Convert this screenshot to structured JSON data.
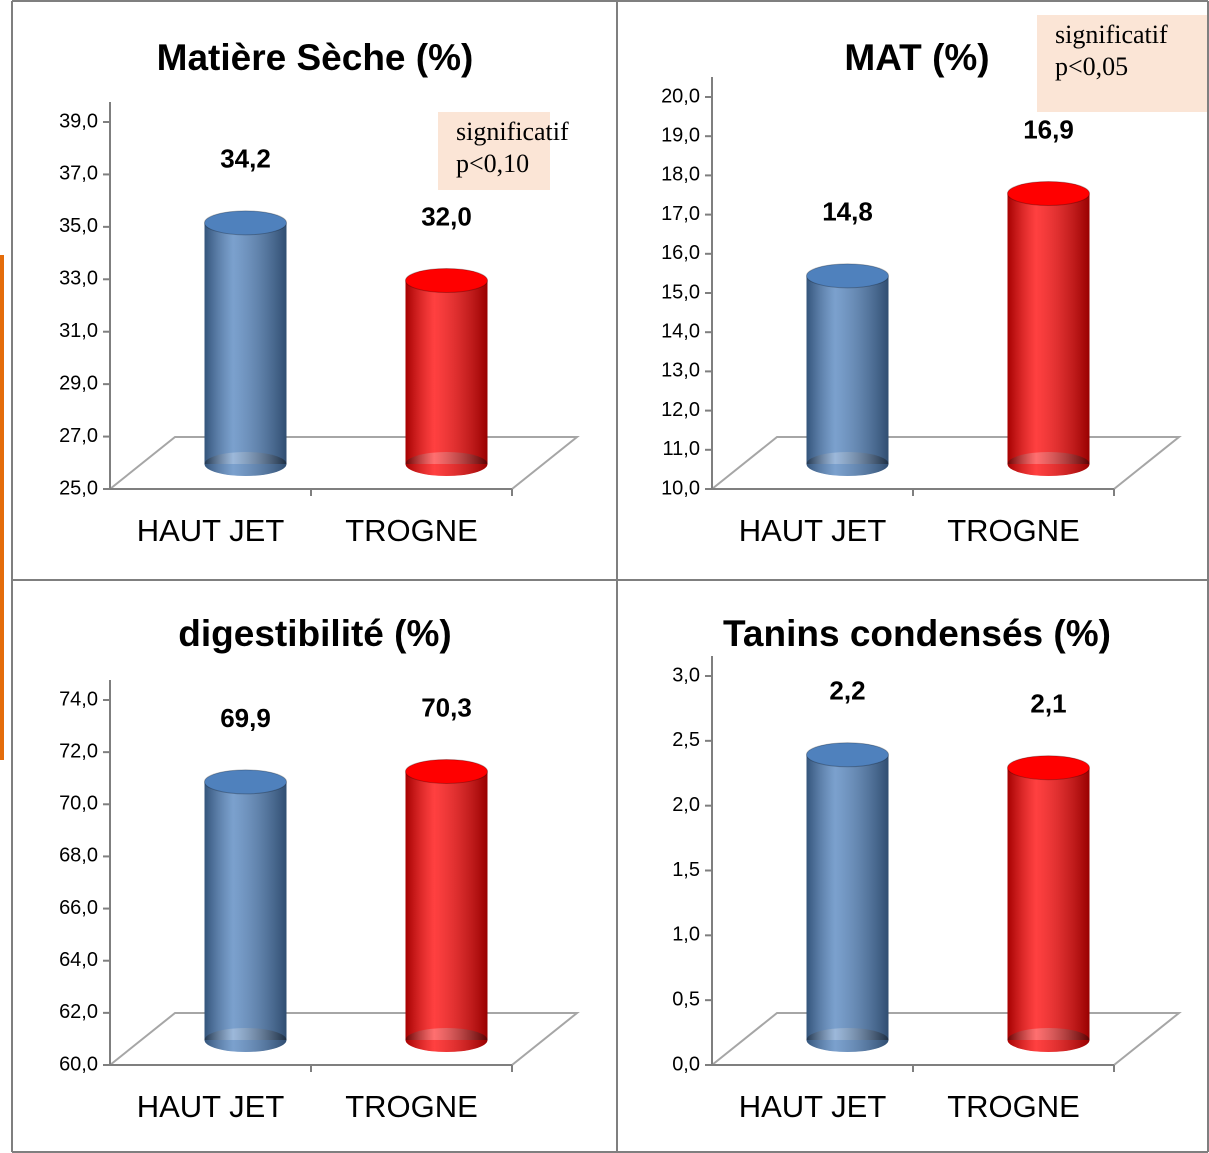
{
  "chart_data": [
    {
      "type": "bar",
      "title": "Matière Sèche (%)",
      "categories": [
        "HAUT JET",
        "TROGNE"
      ],
      "values": [
        34.2,
        32.0
      ],
      "value_labels": [
        "34,2",
        "32,0"
      ],
      "colors": [
        "#4f81bd",
        "#ff0000"
      ],
      "ylim": [
        25,
        39
      ],
      "yticks": [
        {
          "value": 25,
          "label": "25,0"
        },
        {
          "value": 27,
          "label": "27,0"
        },
        {
          "value": 29,
          "label": "29,0"
        },
        {
          "value": 31,
          "label": "31,0"
        },
        {
          "value": 33,
          "label": "33,0"
        },
        {
          "value": 35,
          "label": "35,0"
        },
        {
          "value": 37,
          "label": "37,0"
        },
        {
          "value": 39,
          "label": "39,0"
        }
      ],
      "annotation": [
        "significatif",
        "p<0,10"
      ]
    },
    {
      "type": "bar",
      "title": "MAT (%)",
      "categories": [
        "HAUT JET",
        "TROGNE"
      ],
      "values": [
        14.8,
        16.9
      ],
      "value_labels": [
        "14,8",
        "16,9"
      ],
      "colors": [
        "#4f81bd",
        "#ff0000"
      ],
      "ylim": [
        10,
        20
      ],
      "yticks": [
        {
          "value": 10,
          "label": "10,0"
        },
        {
          "value": 11,
          "label": "11,0"
        },
        {
          "value": 12,
          "label": "12,0"
        },
        {
          "value": 13,
          "label": "13,0"
        },
        {
          "value": 14,
          "label": "14,0"
        },
        {
          "value": 15,
          "label": "15,0"
        },
        {
          "value": 16,
          "label": "16,0"
        },
        {
          "value": 17,
          "label": "17,0"
        },
        {
          "value": 18,
          "label": "18,0"
        },
        {
          "value": 19,
          "label": "19,0"
        },
        {
          "value": 20,
          "label": "20,0"
        }
      ],
      "annotation": [
        "significatif",
        "p<0,05"
      ]
    },
    {
      "type": "bar",
      "title": "digestibilité (%)",
      "categories": [
        "HAUT JET",
        "TROGNE"
      ],
      "values": [
        69.9,
        70.3
      ],
      "value_labels": [
        "69,9",
        "70,3"
      ],
      "colors": [
        "#4f81bd",
        "#ff0000"
      ],
      "ylim": [
        60,
        74
      ],
      "yticks": [
        {
          "value": 60,
          "label": "60,0"
        },
        {
          "value": 62,
          "label": "62,0"
        },
        {
          "value": 64,
          "label": "64,0"
        },
        {
          "value": 66,
          "label": "66,0"
        },
        {
          "value": 68,
          "label": "68,0"
        },
        {
          "value": 70,
          "label": "70,0"
        },
        {
          "value": 72,
          "label": "72,0"
        },
        {
          "value": 74,
          "label": "74,0"
        }
      ]
    },
    {
      "type": "bar",
      "title": "Tanins condensés (%)",
      "categories": [
        "HAUT JET",
        "TROGNE"
      ],
      "values": [
        2.2,
        2.1
      ],
      "value_labels": [
        "2,2",
        "2,1"
      ],
      "colors": [
        "#4f81bd",
        "#ff0000"
      ],
      "ylim": [
        0,
        3
      ],
      "yticks": [
        {
          "value": 0,
          "label": "0,0"
        },
        {
          "value": 0.5,
          "label": "0,5"
        },
        {
          "value": 1,
          "label": "1,0"
        },
        {
          "value": 1.5,
          "label": "1,5"
        },
        {
          "value": 2,
          "label": "2,0"
        },
        {
          "value": 2.5,
          "label": "2,5"
        },
        {
          "value": 3,
          "label": "3,0"
        }
      ]
    }
  ]
}
